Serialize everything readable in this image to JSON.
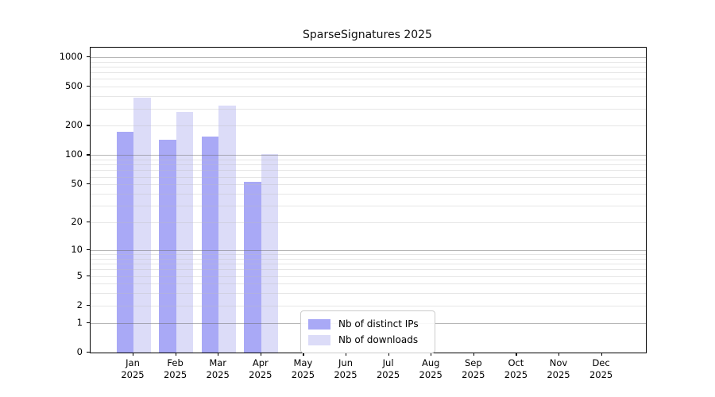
{
  "chart_data": {
    "type": "bar",
    "title": "SparseSignatures 2025",
    "categories": [
      "Jan",
      "Feb",
      "Mar",
      "Apr",
      "May",
      "Jun",
      "Jul",
      "Aug",
      "Sep",
      "Oct",
      "Nov",
      "Dec"
    ],
    "year_label": "2025",
    "series": [
      {
        "name": "Nb of distinct IPs",
        "color": "#a9a9f6",
        "values": [
          175,
          145,
          155,
          53,
          null,
          null,
          null,
          null,
          null,
          null,
          null,
          null
        ]
      },
      {
        "name": "Nb of downloads",
        "color": "#dcdcf8",
        "values": [
          385,
          275,
          320,
          103,
          null,
          null,
          null,
          null,
          null,
          null,
          null,
          null
        ]
      }
    ],
    "y_ticks": [
      0,
      1,
      2,
      5,
      10,
      20,
      50,
      100,
      200,
      500,
      1000
    ],
    "y_scale": "log1p",
    "ylim": [
      0,
      1250
    ],
    "xlabel": "",
    "ylabel": "",
    "grid": "horizontal; major lines at powers of 10, minor lines at 2-9 multiples",
    "legend_position": "inside bottom-center-left",
    "legend_entries": [
      "Nb of distinct IPs",
      "Nb of downloads"
    ]
  },
  "colors": {
    "background": "#ffffff",
    "axis": "#000000",
    "major_gridline": "#b6b6b6",
    "minor_gridline": "#e9e9e9",
    "bar_distinct_ips": "#a9a9f6",
    "bar_downloads": "#dcdcf8"
  }
}
